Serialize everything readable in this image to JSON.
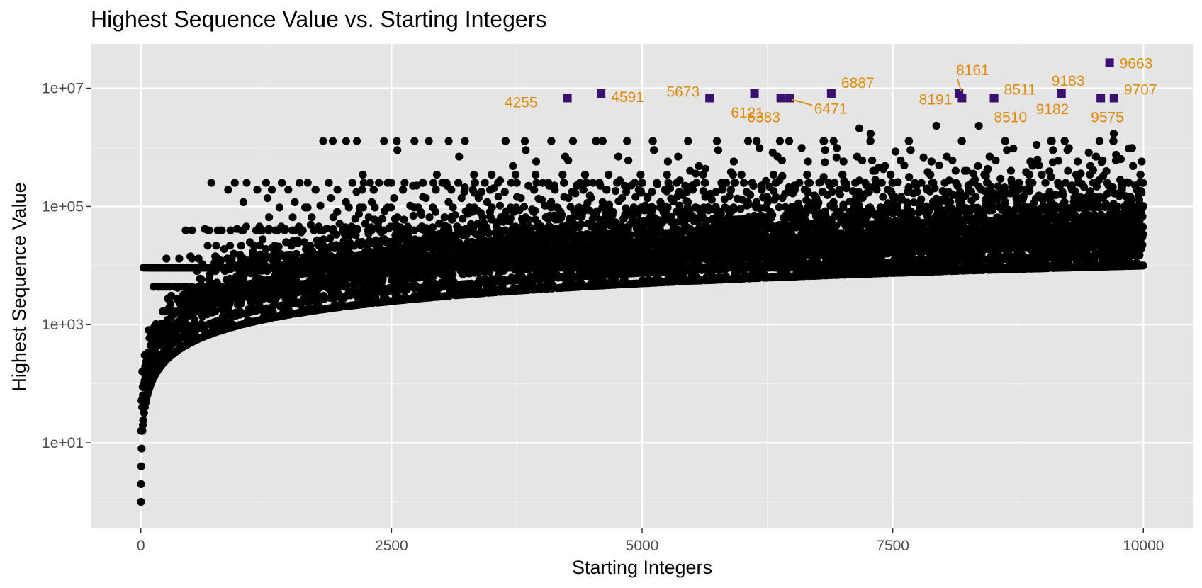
{
  "chart_data": {
    "type": "scatter",
    "title": "Highest Sequence Value vs. Starting Integers",
    "xlabel": "Starting Integers",
    "ylabel": "Highest Sequence Value",
    "xlim": [
      -500,
      10500
    ],
    "ylim_log10": [
      -0.45,
      7.75
    ],
    "y_scale": "log10",
    "grid": true,
    "x_ticks": [
      {
        "value": 0,
        "label": "0"
      },
      {
        "value": 2500,
        "label": "2500"
      },
      {
        "value": 5000,
        "label": "5000"
      },
      {
        "value": 7500,
        "label": "7500"
      },
      {
        "value": 10000,
        "label": "10000"
      }
    ],
    "y_ticks": [
      {
        "value": 10,
        "label": "1e+01"
      },
      {
        "value": 1000,
        "label": "1e+03"
      },
      {
        "value": 100000,
        "label": "1e+05"
      },
      {
        "value": 10000000,
        "label": "1e+07"
      }
    ],
    "series": [
      {
        "description": "all starting integers 1-10000 (circles); highest value of the hailstone sequence",
        "color": "#000000",
        "marker": "circle",
        "x_range": [
          1,
          10000
        ]
      },
      {
        "description": "highlighted top values (squares)",
        "color": "#3b0f70",
        "label_color": "#e08a0b",
        "marker": "square",
        "points": [
          {
            "x": 4255,
            "y": 6810136,
            "label": "4255"
          },
          {
            "x": 4591,
            "y": 8153620,
            "label": "4591"
          },
          {
            "x": 5673,
            "y": 6810136,
            "label": "5673"
          },
          {
            "x": 6121,
            "y": 8153620,
            "label": "6121"
          },
          {
            "x": 6383,
            "y": 6810136,
            "label": "6383"
          },
          {
            "x": 6471,
            "y": 6810136,
            "label": "6471"
          },
          {
            "x": 6887,
            "y": 8153620,
            "label": "6887"
          },
          {
            "x": 8161,
            "y": 8153620,
            "label": "8161"
          },
          {
            "x": 8191,
            "y": 6810136,
            "label": "8191"
          },
          {
            "x": 8510,
            "y": 6810136,
            "label": "8510"
          },
          {
            "x": 8511,
            "y": 6810136,
            "label": "8511"
          },
          {
            "x": 9182,
            "y": 8153620,
            "label": "9182"
          },
          {
            "x": 9183,
            "y": 8153620,
            "label": "9183"
          },
          {
            "x": 9575,
            "y": 6810136,
            "label": "9575"
          },
          {
            "x": 9663,
            "y": 27114424,
            "label": "9663"
          },
          {
            "x": 9707,
            "y": 6810136,
            "label": "9707"
          }
        ]
      }
    ]
  }
}
